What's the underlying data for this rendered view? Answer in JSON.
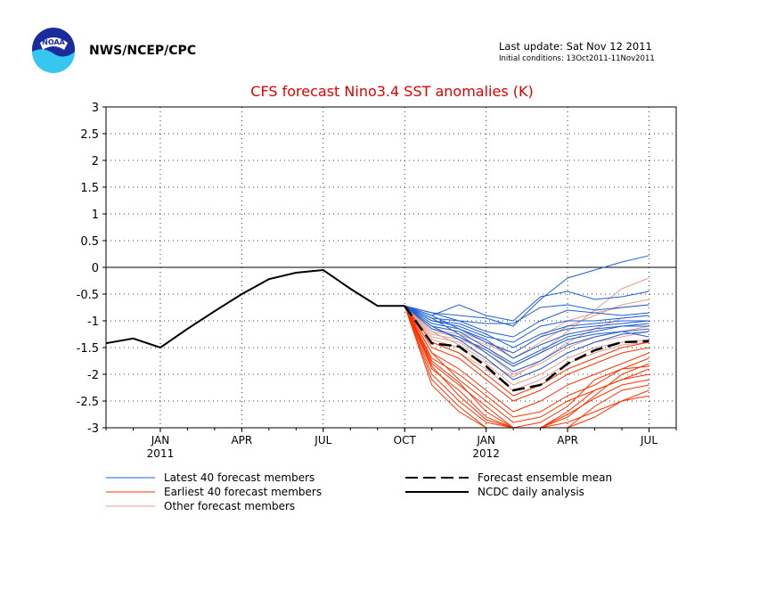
{
  "header": {
    "agency": "NWS/NCEP/CPC",
    "logo_text": "NOAA",
    "last_update": "Last update: Sat Nov 12 2011",
    "initial_conditions": "Initial conditions: 13Oct2011-11Nov2011"
  },
  "colors": {
    "latest": "#1f5fd6",
    "earliest": "#ff3300",
    "other": "#e0a090",
    "mean": "#000000",
    "analysis": "#000000",
    "title": "#e00000"
  },
  "chart_data": {
    "type": "line",
    "title": "CFS forecast Nino3.4 SST anomalies (K)",
    "xlabel": "",
    "ylabel": "",
    "ylim": [
      -3,
      3
    ],
    "xlim": [
      -2,
      19
    ],
    "grid": true,
    "legend_position": "bottom",
    "y_ticks": [
      "3",
      "2.5",
      "2",
      "1.5",
      "1",
      "0.5",
      "0",
      "-0.5",
      "-1",
      "-1.5",
      "-2",
      "-2.5",
      "-3"
    ],
    "x_ticks": [
      {
        "x": 0,
        "label": "JAN",
        "sub": "2011"
      },
      {
        "x": 3,
        "label": "APR",
        "sub": ""
      },
      {
        "x": 6,
        "label": "JUL",
        "sub": ""
      },
      {
        "x": 9,
        "label": "OCT",
        "sub": ""
      },
      {
        "x": 12,
        "label": "JAN",
        "sub": "2012"
      },
      {
        "x": 15,
        "label": "APR",
        "sub": ""
      },
      {
        "x": 18,
        "label": "JUL",
        "sub": ""
      }
    ],
    "legend": {
      "latest": "Latest 40 forecast members",
      "earliest": "Earliest 40 forecast members",
      "other": "Other forecast members",
      "mean": "Forecast ensemble mean",
      "analysis": "NCDC daily analysis"
    },
    "analysis": {
      "name": "NCDC daily analysis",
      "x": [
        -2,
        -1,
        0,
        1,
        2,
        3,
        4,
        5,
        6,
        7,
        8,
        9
      ],
      "y": [
        -1.42,
        -1.33,
        -1.5,
        -1.15,
        -0.82,
        -0.5,
        -0.22,
        -0.1,
        -0.05,
        -0.4,
        -0.72,
        -0.72
      ]
    },
    "mean": {
      "name": "Forecast ensemble mean",
      "x": [
        9,
        10,
        11,
        12,
        13,
        14,
        15,
        16,
        17,
        18
      ],
      "y": [
        -0.72,
        -1.42,
        -1.48,
        -1.85,
        -2.3,
        -2.2,
        -1.8,
        -1.55,
        -1.4,
        -1.38
      ]
    },
    "latest_members": [
      {
        "x": [
          9,
          10,
          11,
          12,
          13,
          14,
          15,
          16,
          17,
          18
        ],
        "y": [
          -0.72,
          -0.85,
          -0.9,
          -0.95,
          -1.1,
          -0.6,
          -0.2,
          -0.05,
          0.1,
          0.22
        ]
      },
      {
        "x": [
          9,
          10,
          11,
          12,
          13,
          14,
          15,
          16,
          17,
          18
        ],
        "y": [
          -0.72,
          -0.9,
          -0.7,
          -0.9,
          -1.0,
          -0.55,
          -0.45,
          -0.6,
          -0.55,
          -0.45
        ]
      },
      {
        "x": [
          9,
          10,
          11,
          12,
          13,
          14,
          15,
          16,
          17,
          18
        ],
        "y": [
          -0.72,
          -0.95,
          -1.0,
          -1.05,
          -1.05,
          -0.75,
          -0.7,
          -0.8,
          -0.75,
          -0.7
        ]
      },
      {
        "x": [
          9,
          10,
          11,
          12,
          13,
          14,
          15,
          16,
          17,
          18
        ],
        "y": [
          -0.72,
          -1.0,
          -1.1,
          -1.3,
          -1.4,
          -1.1,
          -1.0,
          -1.0,
          -0.95,
          -0.9
        ]
      },
      {
        "x": [
          9,
          10,
          11,
          12,
          13,
          14,
          15,
          16,
          17,
          18
        ],
        "y": [
          -0.72,
          -1.05,
          -1.15,
          -1.4,
          -1.6,
          -1.3,
          -1.15,
          -1.1,
          -1.05,
          -1.0
        ]
      },
      {
        "x": [
          9,
          10,
          11,
          12,
          13,
          14,
          15,
          16,
          17,
          18
        ],
        "y": [
          -0.72,
          -1.1,
          -1.2,
          -1.5,
          -1.8,
          -1.55,
          -1.3,
          -1.2,
          -1.1,
          -1.05
        ]
      },
      {
        "x": [
          9,
          10,
          11,
          12,
          13,
          14,
          15,
          16,
          17,
          18
        ],
        "y": [
          -0.72,
          -0.95,
          -1.25,
          -1.6,
          -1.95,
          -1.75,
          -1.45,
          -1.3,
          -1.2,
          -1.15
        ]
      },
      {
        "x": [
          9,
          10,
          11,
          12,
          13,
          14,
          15,
          16,
          17,
          18
        ],
        "y": [
          -0.72,
          -1.1,
          -1.35,
          -1.7,
          -2.1,
          -1.9,
          -1.6,
          -1.4,
          -1.25,
          -1.2
        ]
      },
      {
        "x": [
          9,
          10,
          11,
          12,
          13,
          14,
          15,
          16,
          17,
          18
        ],
        "y": [
          -0.72,
          -0.9,
          -1.15,
          -1.35,
          -1.7,
          -1.45,
          -1.25,
          -1.15,
          -1.1,
          -1.1
        ]
      },
      {
        "x": [
          9,
          10,
          11,
          12,
          13,
          14,
          15,
          16,
          17,
          18
        ],
        "y": [
          -0.72,
          -1.0,
          -1.05,
          -1.25,
          -1.5,
          -1.25,
          -1.1,
          -1.05,
          -1.0,
          -1.0
        ]
      },
      {
        "x": [
          9,
          10,
          11,
          12,
          13,
          14,
          15,
          16,
          17,
          18
        ],
        "y": [
          -0.72,
          -1.15,
          -1.3,
          -1.55,
          -1.85,
          -1.6,
          -1.35,
          -1.25,
          -1.2,
          -1.3
        ]
      },
      {
        "x": [
          9,
          10,
          11,
          12,
          13,
          14,
          15,
          16,
          17,
          18
        ],
        "y": [
          -0.72,
          -0.85,
          -1.0,
          -1.2,
          -1.3,
          -1.0,
          -0.8,
          -0.85,
          -0.9,
          -0.85
        ]
      }
    ],
    "earliest_members": [
      {
        "x": [
          9,
          10,
          11,
          12,
          13,
          14,
          15,
          16,
          17,
          18
        ],
        "y": [
          -0.72,
          -1.8,
          -2.2,
          -2.6,
          -3.0,
          -3.0,
          -2.8,
          -2.4,
          -2.0,
          -1.8
        ]
      },
      {
        "x": [
          9,
          10,
          11,
          12,
          13,
          14,
          15,
          16,
          17,
          18
        ],
        "y": [
          -0.72,
          -2.0,
          -2.5,
          -2.9,
          -3.0,
          -3.0,
          -3.0,
          -2.6,
          -2.3,
          -2.2
        ]
      },
      {
        "x": [
          9,
          10,
          11,
          12,
          13,
          14,
          15,
          16,
          17,
          18
        ],
        "y": [
          -0.72,
          -1.6,
          -1.9,
          -2.3,
          -2.7,
          -2.5,
          -2.2,
          -2.0,
          -1.8,
          -1.6
        ]
      },
      {
        "x": [
          9,
          10,
          11,
          12,
          13,
          14,
          15,
          16,
          17,
          18
        ],
        "y": [
          -0.72,
          -1.5,
          -1.7,
          -2.1,
          -2.5,
          -2.3,
          -2.0,
          -1.8,
          -1.6,
          -1.5
        ]
      },
      {
        "x": [
          9,
          10,
          11,
          12,
          13,
          14,
          15,
          16,
          17,
          18
        ],
        "y": [
          -0.72,
          -2.1,
          -2.6,
          -3.0,
          -3.0,
          -3.0,
          -2.9,
          -2.7,
          -2.5,
          -2.4
        ]
      },
      {
        "x": [
          9,
          10,
          11,
          12,
          13,
          14,
          15,
          16,
          17,
          18
        ],
        "y": [
          -0.72,
          -1.7,
          -2.0,
          -2.4,
          -2.8,
          -2.7,
          -2.4,
          -2.2,
          -1.9,
          -1.7
        ]
      },
      {
        "x": [
          9,
          10,
          11,
          12,
          13,
          14,
          15,
          16,
          17,
          18
        ],
        "y": [
          -0.72,
          -1.9,
          -2.3,
          -2.8,
          -3.0,
          -3.0,
          -2.7,
          -2.3,
          -2.1,
          -2.0
        ]
      },
      {
        "x": [
          9,
          10,
          11,
          12,
          13,
          14,
          15,
          16,
          17,
          18
        ],
        "y": [
          -0.72,
          -1.4,
          -1.6,
          -2.0,
          -2.4,
          -2.2,
          -1.9,
          -1.7,
          -1.5,
          -1.4
        ]
      },
      {
        "x": [
          9,
          10,
          11,
          12,
          13,
          14,
          15,
          16,
          17,
          18
        ],
        "y": [
          -0.72,
          -2.2,
          -2.7,
          -3.0,
          -3.0,
          -3.0,
          -3.0,
          -2.8,
          -2.5,
          -2.3
        ]
      },
      {
        "x": [
          9,
          10,
          11,
          12,
          13,
          14,
          15,
          16,
          17,
          18
        ],
        "y": [
          -0.72,
          -1.6,
          -2.1,
          -2.5,
          -2.9,
          -2.8,
          -2.5,
          -2.3,
          -2.1,
          -1.9
        ]
      },
      {
        "x": [
          9,
          10,
          11,
          12,
          13,
          14,
          15,
          16,
          17,
          18
        ],
        "y": [
          -0.72,
          -1.75,
          -2.15,
          -2.7,
          -3.0,
          -2.9,
          -2.6,
          -2.1,
          -1.9,
          -1.85
        ]
      },
      {
        "x": [
          9,
          10,
          11,
          12,
          13,
          14,
          15,
          16,
          17,
          18
        ],
        "y": [
          -0.72,
          -1.85,
          -2.4,
          -2.85,
          -3.0,
          -3.0,
          -2.75,
          -2.45,
          -2.2,
          -2.1
        ]
      }
    ],
    "other_members": [
      {
        "x": [
          9,
          10,
          11,
          12,
          13,
          14,
          15,
          16,
          17,
          18
        ],
        "y": [
          -0.72,
          -1.2,
          -1.3,
          -1.6,
          -2.0,
          -1.8,
          -1.5,
          -1.3,
          -1.2,
          -1.1
        ]
      },
      {
        "x": [
          9,
          10,
          11,
          12,
          13,
          14,
          15,
          16,
          17,
          18
        ],
        "y": [
          -0.72,
          -1.3,
          -1.4,
          -1.7,
          -2.1,
          -1.9,
          -1.6,
          -1.4,
          -1.3,
          -1.2
        ]
      },
      {
        "x": [
          9,
          10,
          11,
          12,
          13,
          14,
          15,
          16,
          17,
          18
        ],
        "y": [
          -0.72,
          -1.1,
          -1.2,
          -1.4,
          -1.7,
          -1.4,
          -1.1,
          -0.9,
          -0.7,
          -0.6
        ]
      },
      {
        "x": [
          9,
          10,
          11,
          12,
          13,
          14,
          15,
          16,
          17,
          18
        ],
        "y": [
          -0.72,
          -1.25,
          -1.35,
          -1.5,
          -1.85,
          -1.6,
          -1.2,
          -0.8,
          -0.4,
          -0.2
        ]
      },
      {
        "x": [
          9,
          10,
          11,
          12,
          13,
          14,
          15,
          16,
          17,
          18
        ],
        "y": [
          -0.72,
          -1.35,
          -1.5,
          -1.8,
          -2.2,
          -2.0,
          -1.7,
          -1.5,
          -1.4,
          -1.35
        ]
      },
      {
        "x": [
          9,
          10,
          11,
          12,
          13,
          14,
          15,
          16,
          17,
          18
        ],
        "y": [
          -0.72,
          -1.15,
          -1.25,
          -1.45,
          -1.6,
          -1.3,
          -1.0,
          -0.85,
          -0.75,
          -0.7
        ]
      },
      {
        "x": [
          9,
          10,
          11,
          12,
          13,
          14,
          15,
          16,
          17,
          18
        ],
        "y": [
          -0.72,
          -1.4,
          -1.6,
          -1.9,
          -2.3,
          -2.1,
          -1.8,
          -1.6,
          -1.45,
          -1.4
        ]
      },
      {
        "x": [
          9,
          10,
          11,
          12,
          13,
          14,
          15,
          16,
          17,
          18
        ],
        "y": [
          -0.72,
          -1.2,
          -1.45,
          -1.75,
          -2.05,
          -1.75,
          -1.4,
          -1.15,
          -0.95,
          -0.9
        ]
      }
    ]
  }
}
